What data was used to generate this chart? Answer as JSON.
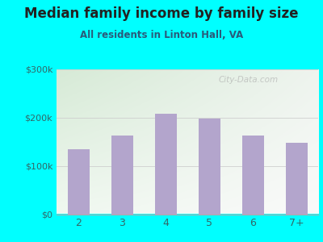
{
  "title": "Median family income by family size",
  "subtitle": "All residents in Linton Hall, VA",
  "categories": [
    "2",
    "3",
    "4",
    "5",
    "6",
    "7+"
  ],
  "values": [
    135000,
    163000,
    207000,
    198000,
    162000,
    148000
  ],
  "bar_color": "#b3a5cc",
  "ylim": [
    0,
    300000
  ],
  "ytick_vals": [
    0,
    100000,
    200000,
    300000
  ],
  "ytick_labels": [
    "$0",
    "$100k",
    "$200k",
    "$300k"
  ],
  "bg_outer": "#00ffff",
  "bg_plot_topleft": "#d6ead6",
  "bg_plot_topright": "#e8f0e8",
  "bg_plot_bottom": "#f5f5f5",
  "title_color": "#222222",
  "subtitle_color": "#2a5a7a",
  "title_fontsize": 12,
  "subtitle_fontsize": 8.5,
  "tick_color": "#336666",
  "watermark": "City-Data.com"
}
